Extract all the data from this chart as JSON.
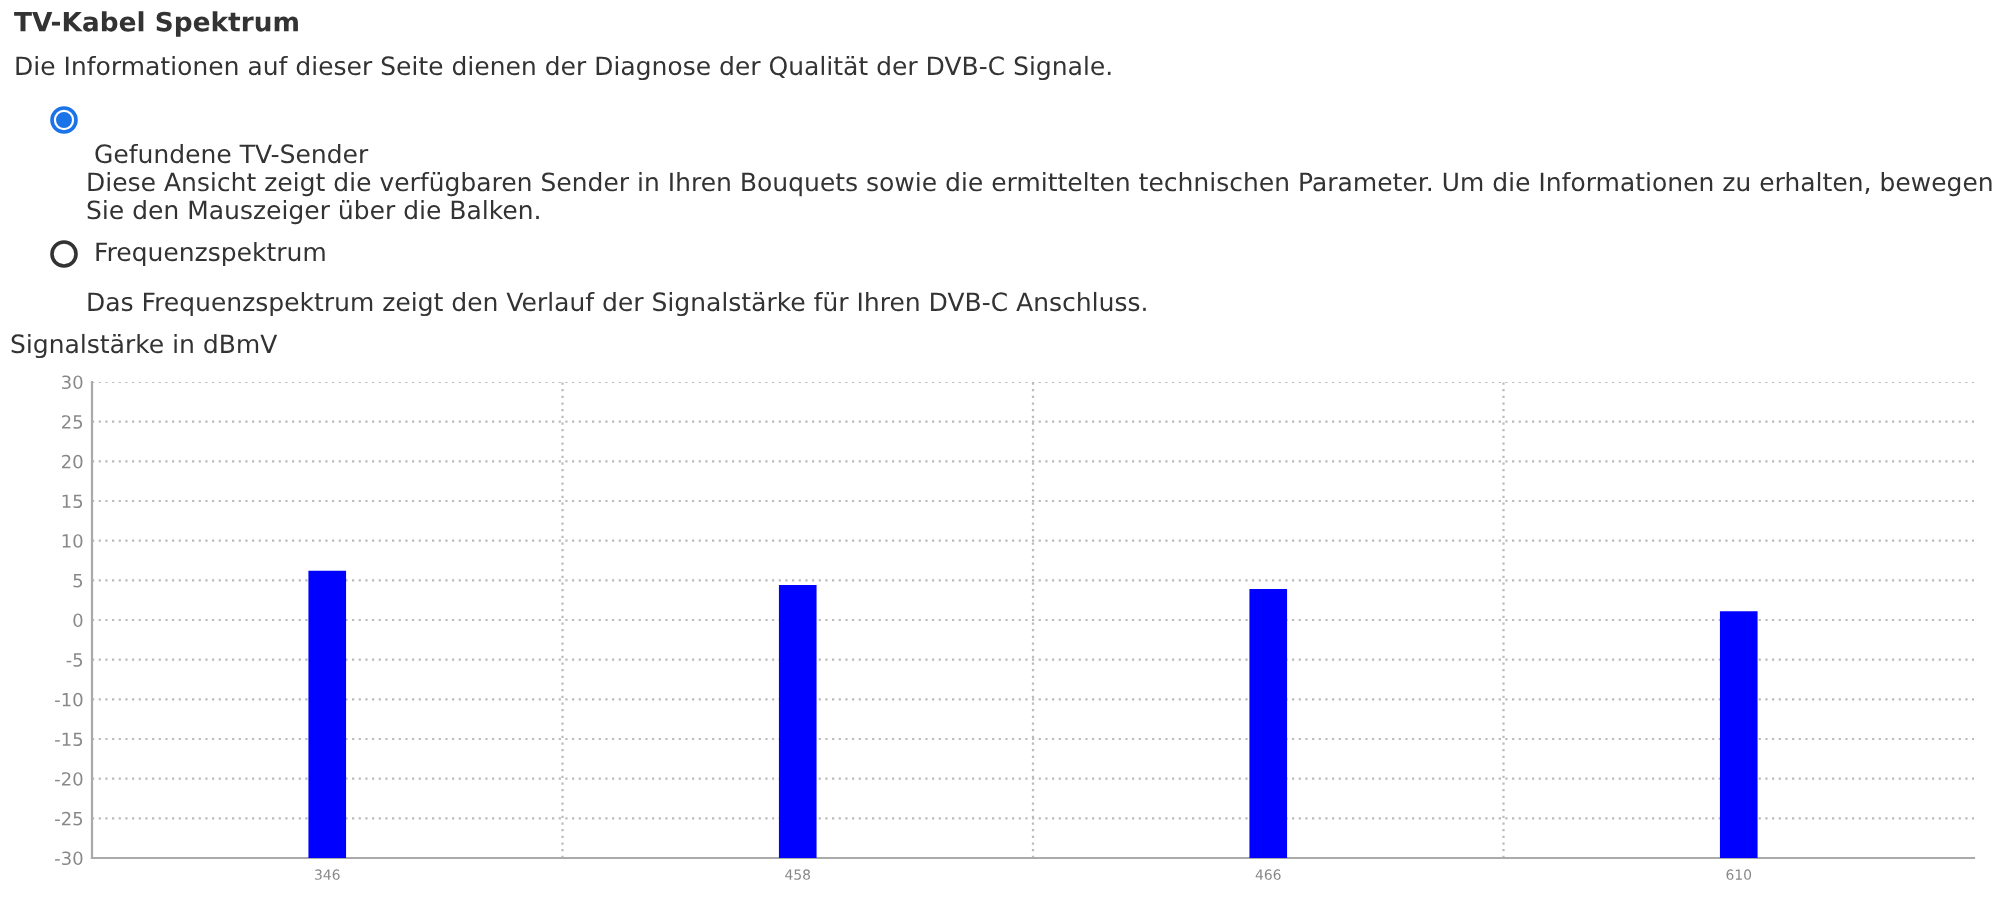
{
  "chart_data": {
    "type": "bar",
    "title": "TV-Kabel Spektrum",
    "subtitle": "Die Informationen auf dieser Seite dienen der Diagnose der Qualität der DVB-C Signale.",
    "annotations": [
      "Gefundene TV-Sender",
      "Diese Ansicht zeigt die verfügbaren Sender in Ihren Bouquets sowie die ermittelten technischen Parameter. Um die Informationen zu erhalten, bewegen Sie den Mauszeiger über die Balken.",
      "Frequenzspektrum",
      "Das Frequenzspektrum zeigt den Verlauf der Signalstärke für Ihren DVB-C Anschluss."
    ],
    "ylabel": "Signalstärke in dBmV",
    "categories": [
      "346",
      "458",
      "466",
      "610"
    ],
    "base": [
      -30,
      -30,
      -30,
      -30
    ],
    "values": [
      36.2,
      34.4,
      33.9,
      31.1
    ],
    "color": "#0000ff",
    "ylim": [
      -30,
      30
    ],
    "yticks": [
      -30,
      -25,
      -20,
      -15,
      -10,
      -5,
      0,
      5,
      10,
      15,
      20,
      25,
      30
    ],
    "grid": true
  }
}
